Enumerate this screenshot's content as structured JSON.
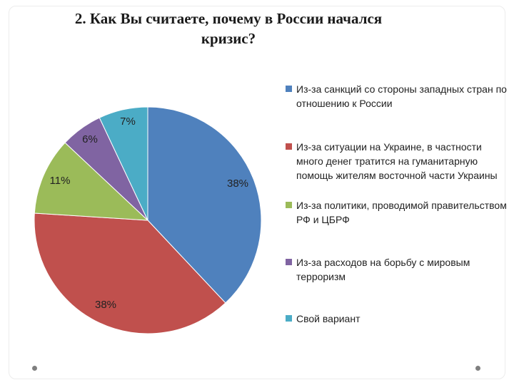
{
  "slide": {
    "title": "2. Как Вы считаете, почему в России начался кризис?"
  },
  "colors": [
    "#4f81bd",
    "#c0504d",
    "#9bbb59",
    "#8064a2",
    "#4bacc6"
  ],
  "chart_data": {
    "type": "pie",
    "title": "",
    "categories": [
      "Из-за санкций со стороны западных стран по отношению к России",
      "Из-за ситуации на Украине, в частности много денег тратится на гуманитарную помощь жителям восточной части Украины",
      "Из-за политики, проводимой правительством РФ и ЦБРФ",
      "Из-за расходов на борьбу с мировым терроризм",
      "Свой вариант"
    ],
    "values": [
      38,
      38,
      11,
      6,
      7
    ],
    "data_labels": [
      "38%",
      "38%",
      "11%",
      "6%",
      "7%"
    ],
    "start_angle": "12 o'clock, clockwise",
    "legend_position": "right"
  }
}
